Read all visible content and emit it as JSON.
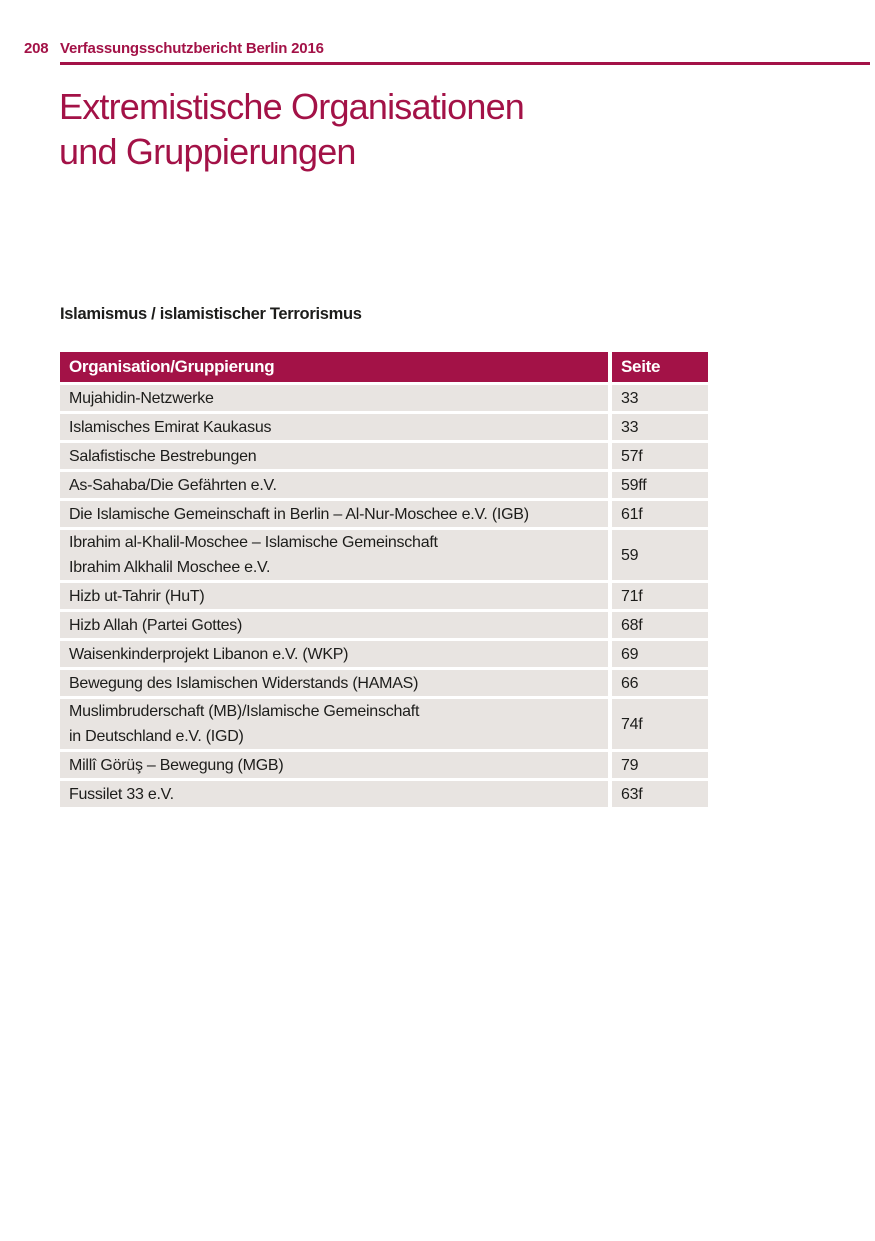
{
  "page": {
    "background_color": "#ffffff",
    "accent_color": "#a31247",
    "row_color": "#e8e4e1",
    "text_color": "#1d1d1b"
  },
  "running_head": {
    "page_number": "208",
    "report_title": "Verfassungsschutzbericht Berlin 2016"
  },
  "chapter_title": {
    "line1": "Extremistische Organisationen",
    "line2": "und Gruppierungen"
  },
  "section": {
    "heading": "Islamismus / islamistischer Terrorismus"
  },
  "table": {
    "columns": [
      "Organisation/Gruppierung",
      "Seite"
    ],
    "rows": [
      {
        "organisation": "Mujahidin-Netzwerke",
        "seite": "33"
      },
      {
        "organisation": "Islamisches Emirat Kaukasus",
        "seite": "33"
      },
      {
        "organisation": "Salafistische Bestrebungen",
        "seite": "57f"
      },
      {
        "organisation": "As-Sahaba/Die Gefährten e.V.",
        "seite": "59ff"
      },
      {
        "organisation": "Die Islamische Gemeinschaft in Berlin – Al-Nur-Moschee e.V. (IGB)",
        "seite": "61f"
      },
      {
        "organisation": "Ibrahim al-Khalil-Moschee – Islamische Gemeinschaft\nIbrahim Alkhalil Moschee e.V.",
        "seite": "59"
      },
      {
        "organisation": "Hizb ut-Tahrir (HuT)",
        "seite": "71f"
      },
      {
        "organisation": "Hizb Allah (Partei Gottes)",
        "seite": "68f"
      },
      {
        "organisation": "Waisenkinderprojekt Libanon e.V. (WKP)",
        "seite": "69"
      },
      {
        "organisation": "Bewegung des Islamischen Widerstands (HAMAS)",
        "seite": "66"
      },
      {
        "organisation": "Muslimbruderschaft (MB)/Islamische Gemeinschaft\nin Deutschland e.V. (IGD)",
        "seite": "74f"
      },
      {
        "organisation": "Millî Görüş – Bewegung (MGB)",
        "seite": "79"
      },
      {
        "organisation": "Fussilet 33 e.V.",
        "seite": "63f"
      }
    ]
  }
}
